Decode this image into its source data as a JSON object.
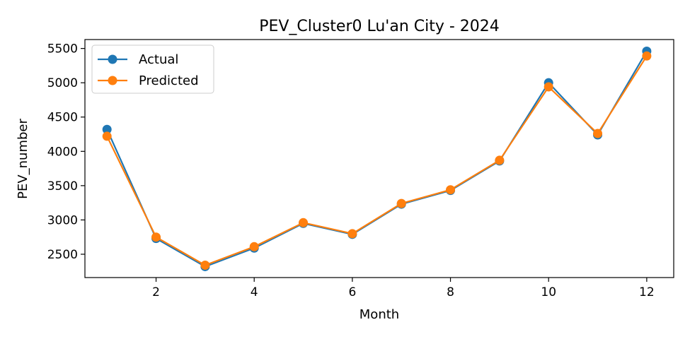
{
  "chart_data": {
    "type": "line",
    "title": "PEV_Cluster0 Lu'an City - 2024",
    "xlabel": "Month",
    "ylabel": "PEV_number",
    "xlim": [
      0.55,
      12.55
    ],
    "ylim": [
      2160,
      5630
    ],
    "xticks": [
      2,
      4,
      6,
      8,
      10,
      12
    ],
    "yticks": [
      2500,
      3000,
      3500,
      4000,
      4500,
      5000,
      5500
    ],
    "grid": false,
    "legend_position": "upper left",
    "x": [
      1,
      2,
      3,
      4,
      5,
      6,
      7,
      8,
      9,
      10,
      11,
      12
    ],
    "series": [
      {
        "name": "Actual",
        "color": "#1f77b4",
        "marker": "circle",
        "values": [
          4320,
          2730,
          2320,
          2590,
          2950,
          2790,
          3230,
          3430,
          3860,
          5000,
          4240,
          5460
        ]
      },
      {
        "name": "Predicted",
        "color": "#ff7f0e",
        "marker": "circle",
        "values": [
          4220,
          2750,
          2340,
          2610,
          2960,
          2800,
          3240,
          3440,
          3870,
          4940,
          4260,
          5390
        ]
      }
    ]
  }
}
